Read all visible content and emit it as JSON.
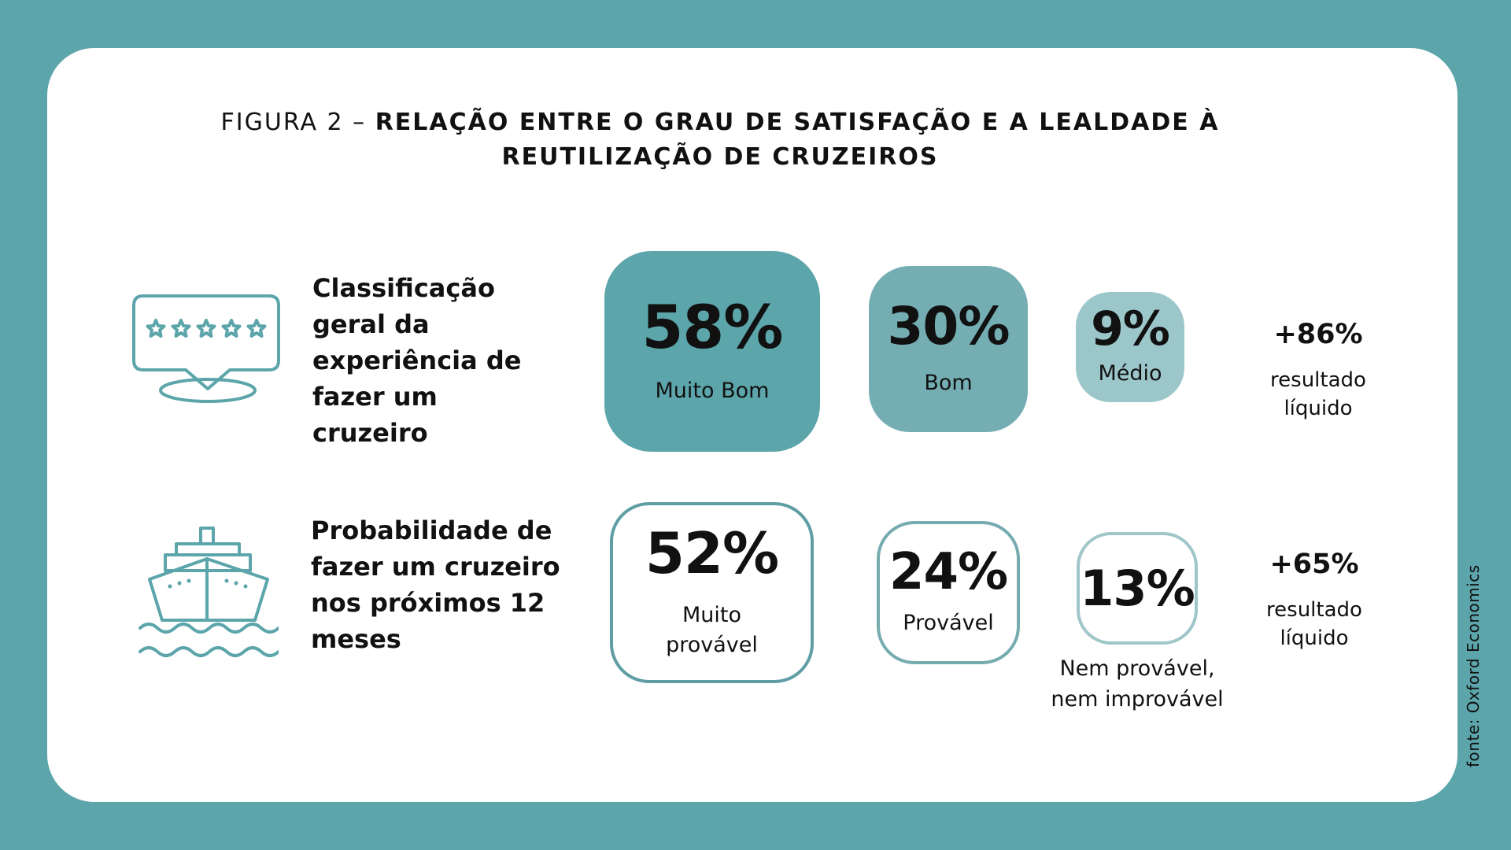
{
  "title": {
    "prefix": "FIGURA 2 – ",
    "main": "RELAÇÃO ENTRE O GRAU DE SATISFAÇÃO E A LEALDADE À REUTILIZAÇÃO DE CRUZEIROS"
  },
  "rows": [
    {
      "icon": "rating-stars-icon",
      "label": "Classificação geral da experiência de fazer um cruzeiro",
      "items": [
        {
          "value": "58%",
          "label": "Muito Bom"
        },
        {
          "value": "30%",
          "label": "Bom"
        },
        {
          "value": "9%",
          "label": "Médio"
        }
      ],
      "net": {
        "value": "+86%",
        "label": "resultado líquido"
      }
    },
    {
      "icon": "cruise-ship-icon",
      "label": "Probabilidade de fazer um cruzeiro nos próximos 12 meses",
      "items": [
        {
          "value": "52%",
          "label": "Muito provável"
        },
        {
          "value": "24%",
          "label": "Provável"
        },
        {
          "value": "13%",
          "label": "Nem provável, nem improvável"
        }
      ],
      "net": {
        "value": "+65%",
        "label": "resultado líquido"
      }
    }
  ],
  "source": "fonte: Oxford Economics",
  "colors": {
    "teal": "#5ca5aa",
    "teal_mid": "#74aeb3",
    "teal_light": "#9cc7ca"
  }
}
